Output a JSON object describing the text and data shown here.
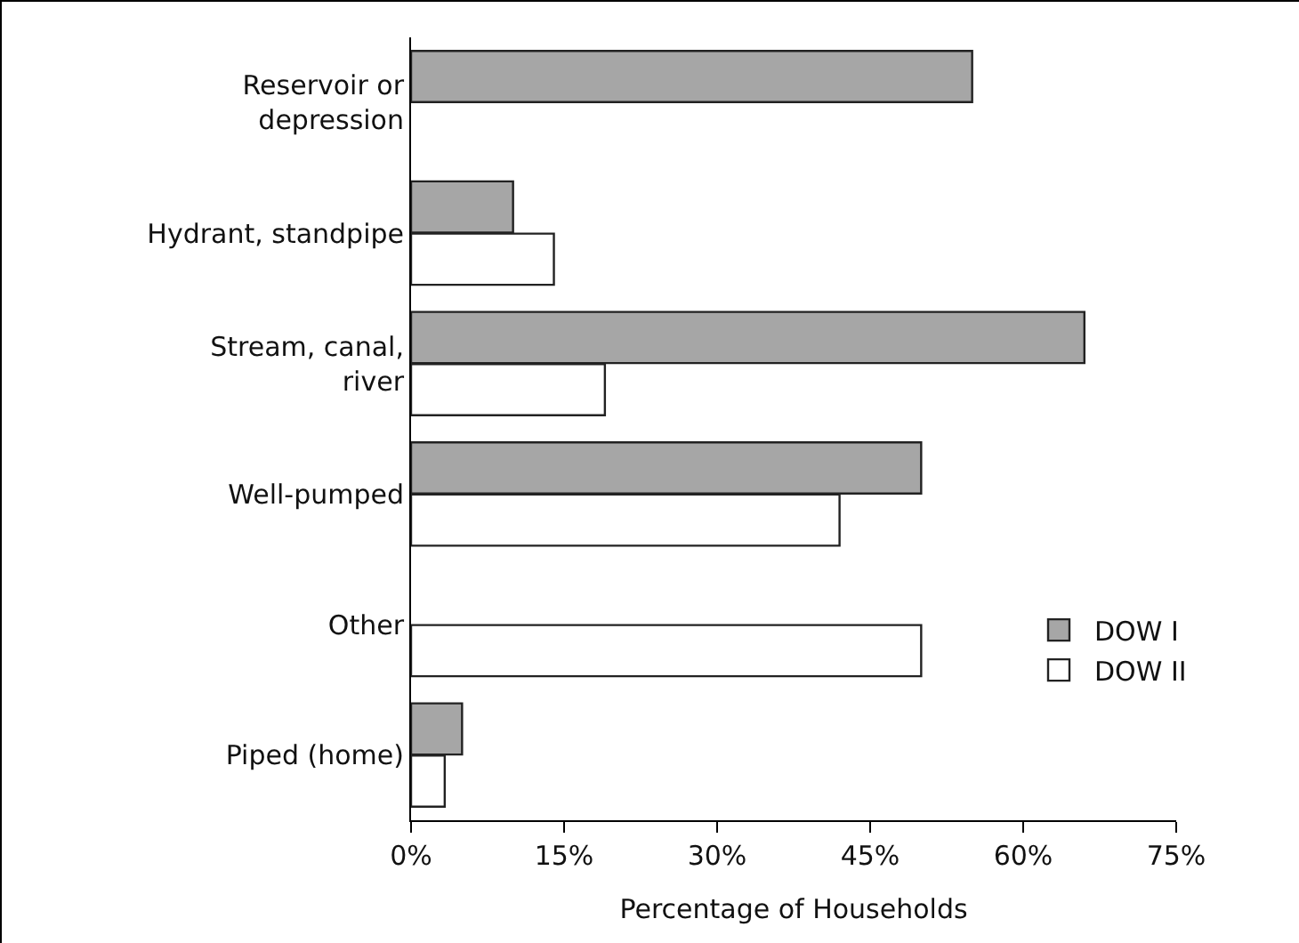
{
  "chart_data": {
    "type": "bar",
    "orientation": "horizontal",
    "xlabel": "Percentage of Households",
    "categories": [
      "Reservoir or depression",
      "Hydrant, standpipe",
      "Stream, canal, river",
      "Well-pumped",
      "Other",
      "Piped (home)"
    ],
    "series": [
      {
        "name": "DOW I",
        "color": "#a6a6a6",
        "values": [
          55,
          10,
          66,
          50,
          null,
          5
        ]
      },
      {
        "name": "DOW II",
        "color": "#ffffff",
        "values": [
          null,
          14,
          19,
          42,
          50,
          3.3
        ]
      }
    ],
    "xlim": [
      0,
      75
    ],
    "xticks": [
      {
        "value": 0,
        "label": "0%"
      },
      {
        "value": 15,
        "label": "15%"
      },
      {
        "value": 30,
        "label": "30%"
      },
      {
        "value": 45,
        "label": "45%"
      },
      {
        "value": 60,
        "label": "60%"
      },
      {
        "value": 75,
        "label": "75%"
      }
    ],
    "grid": false,
    "legend": "right"
  }
}
